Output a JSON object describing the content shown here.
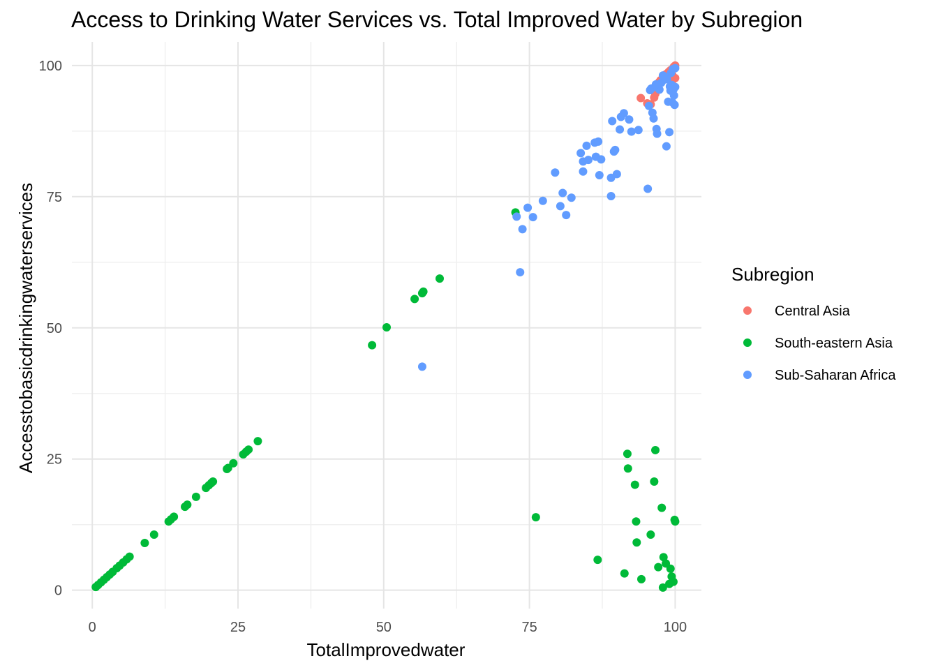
{
  "chart_data": {
    "type": "scatter",
    "title": "Access to Drinking Water Services vs. Total Improved Water by Subregion",
    "xlabel": "TotalImprovedwater",
    "ylabel": "Accesstobasicdrinkingwaterservices",
    "xlim": [
      -3.5,
      104.5
    ],
    "ylim": [
      -3.5,
      104.5
    ],
    "x_ticks": [
      0,
      25,
      50,
      75,
      100
    ],
    "y_ticks": [
      0,
      25,
      50,
      75,
      100
    ],
    "grid": true,
    "legend_position": "right",
    "legend_title": "Subregion",
    "series": [
      {
        "name": "Central Asia",
        "color": "#F8766D",
        "points": [
          [
            94.1,
            93.8
          ],
          [
            95.2,
            92.8
          ],
          [
            95.8,
            92.6
          ],
          [
            96.4,
            93.9
          ],
          [
            96.6,
            94.6
          ],
          [
            97.3,
            96.9
          ],
          [
            97.5,
            97.2
          ],
          [
            98.0,
            97.6
          ],
          [
            98.3,
            97.9
          ],
          [
            98.5,
            98.4
          ],
          [
            98.9,
            98.8
          ],
          [
            99.2,
            99.1
          ],
          [
            99.4,
            96.8
          ],
          [
            99.6,
            97.3
          ],
          [
            99.7,
            99.6
          ],
          [
            99.8,
            99.8
          ],
          [
            100.0,
            100.0
          ],
          [
            100.0,
            97.6
          ],
          [
            99.5,
            98.2
          ]
        ]
      },
      {
        "name": "South-eastern Asia",
        "color": "#00BA38",
        "points": [
          [
            0.6,
            0.6
          ],
          [
            1.0,
            1.0
          ],
          [
            1.5,
            1.5
          ],
          [
            2.0,
            2.0
          ],
          [
            2.5,
            2.5
          ],
          [
            3.0,
            3.0
          ],
          [
            3.5,
            3.5
          ],
          [
            4.2,
            4.2
          ],
          [
            4.7,
            4.7
          ],
          [
            5.3,
            5.3
          ],
          [
            5.9,
            5.9
          ],
          [
            6.4,
            6.4
          ],
          [
            9.0,
            9.0
          ],
          [
            10.6,
            10.6
          ],
          [
            13.1,
            13.1
          ],
          [
            13.5,
            13.5
          ],
          [
            14.0,
            14.0
          ],
          [
            15.9,
            15.9
          ],
          [
            16.3,
            16.3
          ],
          [
            17.8,
            17.8
          ],
          [
            19.5,
            19.5
          ],
          [
            20.0,
            20.0
          ],
          [
            20.4,
            20.4
          ],
          [
            20.7,
            20.7
          ],
          [
            23.1,
            23.1
          ],
          [
            23.3,
            23.3
          ],
          [
            24.2,
            24.2
          ],
          [
            25.9,
            25.9
          ],
          [
            26.4,
            26.4
          ],
          [
            26.8,
            26.8
          ],
          [
            28.4,
            28.4
          ],
          [
            48.0,
            46.7
          ],
          [
            50.5,
            50.1
          ],
          [
            55.3,
            55.5
          ],
          [
            56.6,
            56.6
          ],
          [
            56.8,
            56.9
          ],
          [
            59.6,
            59.4
          ],
          [
            72.6,
            72.0
          ],
          [
            76.1,
            13.9
          ],
          [
            86.7,
            5.8
          ],
          [
            91.3,
            3.2
          ],
          [
            91.8,
            26.0
          ],
          [
            91.9,
            23.2
          ],
          [
            93.1,
            20.1
          ],
          [
            93.3,
            13.1
          ],
          [
            93.4,
            9.1
          ],
          [
            94.2,
            2.1
          ],
          [
            95.8,
            10.6
          ],
          [
            96.4,
            20.7
          ],
          [
            96.6,
            26.7
          ],
          [
            97.1,
            4.4
          ],
          [
            97.7,
            15.7
          ],
          [
            97.9,
            0.5
          ],
          [
            98.0,
            6.3
          ],
          [
            98.4,
            5.1
          ],
          [
            99.0,
            1.2
          ],
          [
            99.2,
            4.1
          ],
          [
            99.4,
            2.6
          ],
          [
            99.7,
            1.6
          ],
          [
            99.9,
            13.4
          ],
          [
            100.0,
            13.1
          ]
        ]
      },
      {
        "name": "Sub-Saharan Africa",
        "color": "#619CFF",
        "points": [
          [
            56.6,
            42.6
          ],
          [
            72.8,
            71.2
          ],
          [
            73.4,
            60.6
          ],
          [
            73.8,
            68.8
          ],
          [
            74.7,
            72.9
          ],
          [
            75.6,
            71.1
          ],
          [
            77.3,
            74.2
          ],
          [
            79.4,
            79.6
          ],
          [
            80.3,
            73.2
          ],
          [
            80.7,
            75.7
          ],
          [
            81.3,
            71.5
          ],
          [
            82.2,
            74.8
          ],
          [
            83.8,
            83.3
          ],
          [
            84.2,
            81.7
          ],
          [
            84.2,
            79.8
          ],
          [
            84.8,
            84.7
          ],
          [
            85.1,
            82.0
          ],
          [
            86.2,
            85.3
          ],
          [
            86.4,
            82.6
          ],
          [
            86.8,
            85.5
          ],
          [
            87.0,
            79.1
          ],
          [
            87.3,
            82.1
          ],
          [
            89.0,
            75.1
          ],
          [
            89.0,
            78.6
          ],
          [
            89.2,
            89.4
          ],
          [
            89.5,
            83.6
          ],
          [
            89.7,
            83.9
          ],
          [
            90.0,
            79.3
          ],
          [
            90.5,
            87.8
          ],
          [
            90.7,
            90.2
          ],
          [
            91.2,
            90.9
          ],
          [
            92.1,
            89.7
          ],
          [
            92.5,
            87.4
          ],
          [
            93.7,
            87.7
          ],
          [
            95.3,
            76.5
          ],
          [
            95.5,
            92.3
          ],
          [
            95.9,
            95.6
          ],
          [
            96.1,
            91.0
          ],
          [
            96.3,
            89.9
          ],
          [
            96.5,
            95.9
          ],
          [
            96.8,
            87.9
          ],
          [
            96.9,
            87.0
          ],
          [
            97.0,
            96.2
          ],
          [
            97.3,
            95.4
          ],
          [
            97.6,
            96.7
          ],
          [
            98.1,
            97.3
          ],
          [
            98.3,
            97.8
          ],
          [
            98.5,
            84.6
          ],
          [
            98.8,
            93.1
          ],
          [
            99.0,
            87.3
          ],
          [
            99.1,
            96.0
          ],
          [
            99.2,
            95.2
          ],
          [
            99.4,
            96.3
          ],
          [
            99.5,
            93.0
          ],
          [
            99.6,
            99.3
          ],
          [
            99.7,
            95.4
          ],
          [
            99.8,
            94.3
          ],
          [
            99.9,
            92.5
          ],
          [
            100.0,
            95.9
          ],
          [
            100.0,
            99.5
          ],
          [
            98.6,
            97.4
          ],
          [
            99.3,
            98.6
          ],
          [
            97.9,
            98.1
          ],
          [
            95.7,
            95.3
          ],
          [
            96.7,
            96.4
          ]
        ]
      }
    ]
  }
}
